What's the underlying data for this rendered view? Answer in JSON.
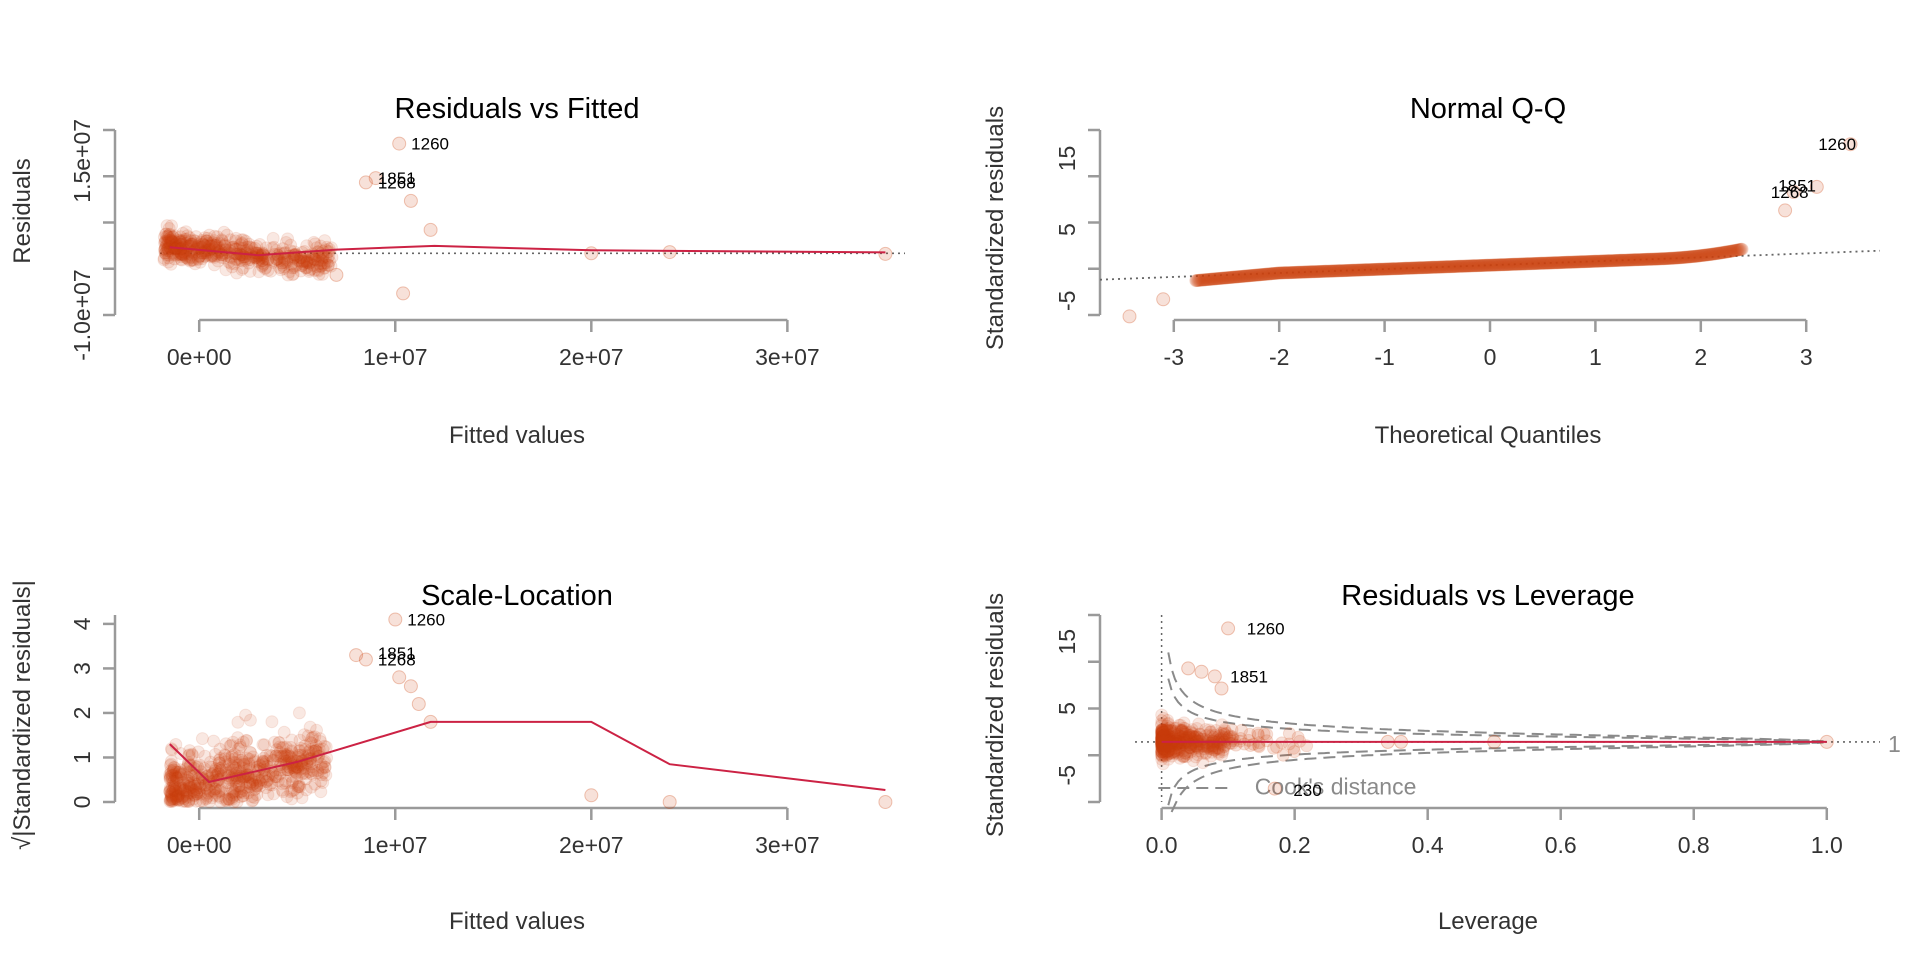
{
  "colors": {
    "points": "#cc4411",
    "smoother": "#cc2244",
    "refline": "#666666",
    "axis": "#9a9a9a",
    "cook": "#8a8a8a"
  },
  "chart_data": [
    {
      "id": "res-fitted",
      "type": "scatter",
      "title": "Residuals vs Fitted",
      "xlabel": "Fitted values",
      "ylabel": "Residuals",
      "xticks": [
        0,
        10000000,
        20000000,
        30000000
      ],
      "xtick_labels": [
        "0e+00",
        "1e+07",
        "2e+07",
        "3e+07"
      ],
      "yticks": [
        -10000000,
        15000000
      ],
      "ytick_labels": [
        "-1.0e+07",
        "1.5e+07"
      ],
      "xlim": [
        -2000000,
        36000000
      ],
      "ylim": [
        -10000000,
        20000000
      ],
      "ref_line": {
        "type": "hline",
        "y": 0,
        "style": "dotted"
      },
      "smoother": [
        [
          -1500000,
          1000000
        ],
        [
          3000000,
          -300000
        ],
        [
          7000000,
          600000
        ],
        [
          12000000,
          1200000
        ],
        [
          20000000,
          500000
        ],
        [
          35000000,
          150000
        ]
      ],
      "outliers": [
        [
          10200000,
          17800000
        ],
        [
          8500000,
          11500000
        ],
        [
          9000000,
          12200000
        ],
        [
          10800000,
          8500000
        ],
        [
          11800000,
          3800000
        ],
        [
          7000000,
          -3500000
        ],
        [
          10400000,
          -6500000
        ],
        [
          24000000,
          200000
        ],
        [
          20000000,
          0
        ],
        [
          35000000,
          -100000
        ]
      ],
      "labels": [
        {
          "text": "1260",
          "x": 10200000,
          "y": 17800000
        },
        {
          "text": "1851",
          "x": 8500000,
          "y": 12200000
        },
        {
          "text": "1268",
          "x": 8500000,
          "y": 11500000
        }
      ]
    },
    {
      "id": "normal-qq",
      "type": "scatter",
      "title": "Normal Q-Q",
      "xlabel": "Theoretical Quantiles",
      "ylabel": "Standardized residuals",
      "xticks": [
        -3,
        -2,
        -1,
        0,
        1,
        2,
        3
      ],
      "xtick_labels": [
        "-3",
        "-2",
        "-1",
        "0",
        "1",
        "2",
        "3"
      ],
      "yticks": [
        -5,
        5,
        15
      ],
      "ytick_labels": [
        "-5",
        "5",
        "15"
      ],
      "xlim": [
        -3.7,
        3.7
      ],
      "ylim": [
        -7,
        19
      ],
      "ref_line": {
        "type": "abline",
        "intercept": 0,
        "slope": 0.55,
        "style": "dotted"
      },
      "outliers": [
        [
          3.42,
          17
        ],
        [
          3.1,
          11
        ],
        [
          2.88,
          10.3
        ],
        [
          2.8,
          7.7
        ],
        [
          -3.42,
          -7.2
        ],
        [
          -3.1,
          -4.8
        ]
      ],
      "labels": [
        {
          "text": "1260",
          "x": 3.0,
          "y": 17
        },
        {
          "text": "1851",
          "x": 2.62,
          "y": 11.2
        },
        {
          "text": "1268",
          "x": 2.55,
          "y": 10.3
        }
      ]
    },
    {
      "id": "scale-location",
      "type": "scatter",
      "title": "Scale-Location",
      "xlabel": "Fitted values",
      "ylabel": "√|Standardized residuals|",
      "xticks": [
        0,
        10000000,
        20000000,
        30000000
      ],
      "xtick_labels": [
        "0e+00",
        "1e+07",
        "2e+07",
        "3e+07"
      ],
      "yticks": [
        0,
        1,
        2,
        3,
        4
      ],
      "ytick_labels": [
        "0",
        "1",
        "2",
        "3",
        "4"
      ],
      "xlim": [
        -2000000,
        36000000
      ],
      "ylim": [
        0,
        4.2
      ],
      "smoother": [
        [
          -1500000,
          1.3
        ],
        [
          500000,
          0.45
        ],
        [
          5000000,
          0.9
        ],
        [
          11800000,
          1.8
        ],
        [
          20000000,
          1.8
        ],
        [
          24000000,
          0.85
        ],
        [
          35000000,
          0.27
        ]
      ],
      "outliers": [
        [
          10000000,
          4.1
        ],
        [
          8000000,
          3.3
        ],
        [
          8500000,
          3.2
        ],
        [
          10200000,
          2.8
        ],
        [
          10800000,
          2.6
        ],
        [
          11200000,
          2.2
        ],
        [
          11800000,
          1.8
        ],
        [
          20000000,
          0.15
        ],
        [
          24000000,
          0.0
        ],
        [
          35000000,
          0.0
        ]
      ],
      "labels": [
        {
          "text": "1260",
          "x": 10000000,
          "y": 4.1
        },
        {
          "text": "1851",
          "x": 8500000,
          "y": 3.35
        },
        {
          "text": "1268",
          "x": 8500000,
          "y": 3.2
        }
      ]
    },
    {
      "id": "res-leverage",
      "type": "scatter",
      "title": "Residuals vs Leverage",
      "xlabel": "Leverage",
      "ylabel": "Standardized residuals",
      "xticks": [
        0,
        0.2,
        0.4,
        0.6,
        0.8,
        1.0
      ],
      "xtick_labels": [
        "0.0",
        "0.2",
        "0.4",
        "0.6",
        "0.8",
        "1.0"
      ],
      "yticks": [
        -5,
        5,
        15
      ],
      "ytick_labels": [
        "-5",
        "5",
        "15"
      ],
      "xlim": [
        -0.04,
        1.08
      ],
      "ylim": [
        -9,
        19
      ],
      "ref_line": {
        "type": "hline",
        "y": 0,
        "style": "dotted"
      },
      "outliers": [
        [
          0.1,
          17
        ],
        [
          0.08,
          9.8
        ],
        [
          0.04,
          11
        ],
        [
          0.06,
          10.5
        ],
        [
          0.09,
          8
        ],
        [
          0.17,
          -7
        ],
        [
          0.34,
          0
        ],
        [
          0.36,
          0
        ],
        [
          0.5,
          0
        ],
        [
          1.0,
          0
        ]
      ],
      "labels": [
        {
          "text": "1260",
          "x": 0.11,
          "y": 17
        },
        {
          "text": "1851",
          "x": 0.085,
          "y": 9.8
        },
        {
          "text": "230",
          "x": 0.18,
          "y": -7.2
        }
      ],
      "cook_levels": [
        0.5,
        1
      ],
      "cook_legend": "Cook's distance",
      "cook_level_label": "1"
    }
  ]
}
